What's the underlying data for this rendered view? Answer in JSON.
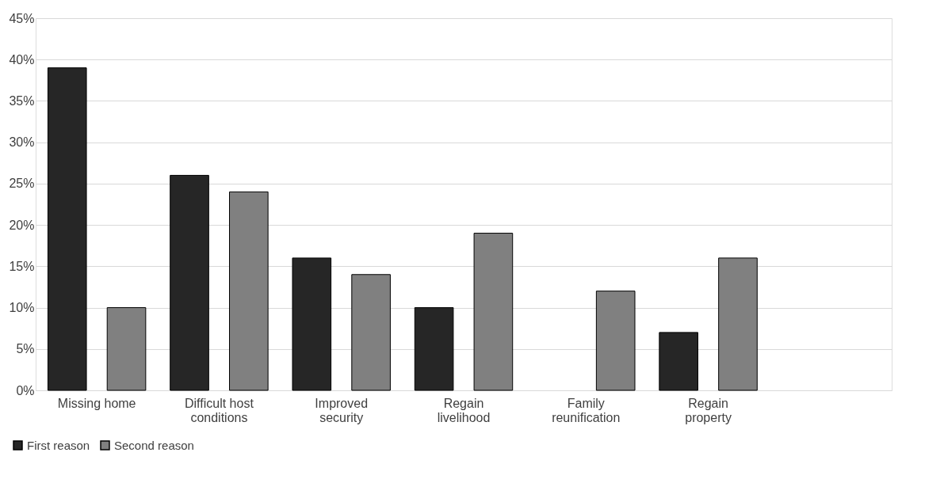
{
  "chart_data": {
    "type": "bar",
    "categories": [
      "Missing home",
      "Difficult host conditions",
      "Improved security",
      "Regain livelihood",
      "Family reunification",
      "Regain property",
      null
    ],
    "series": [
      {
        "name": "First reason",
        "color": "#262626",
        "values": [
          39,
          26,
          16,
          10,
          null,
          7,
          null
        ]
      },
      {
        "name": "Second reason",
        "color": "#808080",
        "values": [
          10,
          24,
          14,
          19,
          12,
          16,
          null
        ]
      }
    ],
    "ylim": [
      0,
      45
    ],
    "yticks": [
      {
        "value": 0,
        "label": "0%"
      },
      {
        "value": 5,
        "label": "5%"
      },
      {
        "value": 10,
        "label": "10%"
      },
      {
        "value": 15,
        "label": "15%"
      },
      {
        "value": 20,
        "label": "20%"
      },
      {
        "value": 25,
        "label": "25%"
      },
      {
        "value": 30,
        "label": "30%"
      },
      {
        "value": 35,
        "label": "35%"
      },
      {
        "value": 40,
        "label": "40%"
      },
      {
        "value": 45,
        "label": "45%"
      }
    ],
    "grid": "y",
    "legend": "bottom left"
  }
}
